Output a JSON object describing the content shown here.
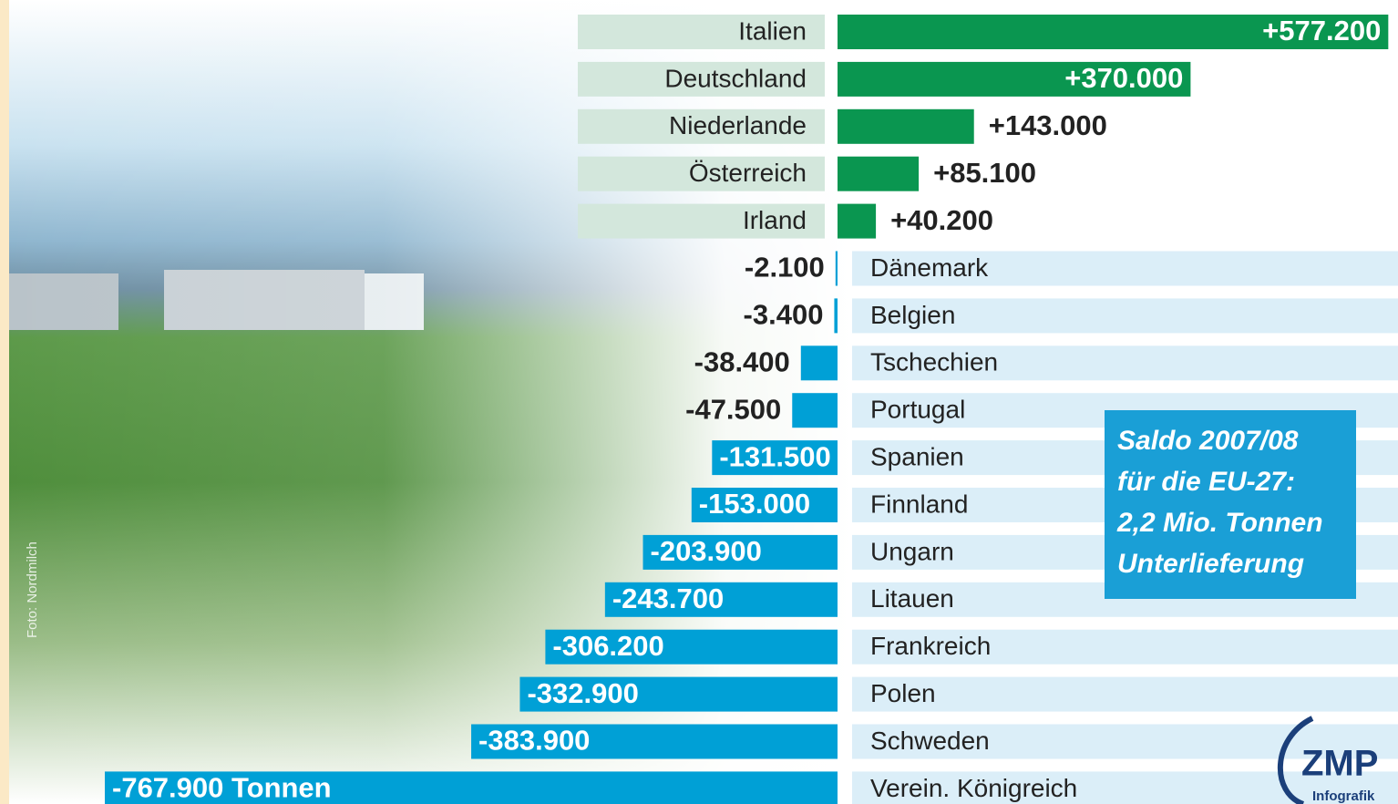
{
  "chart_data": {
    "type": "bar",
    "orientation": "horizontal",
    "categories": [
      "Italien",
      "Deutschland",
      "Niederlande",
      "Österreich",
      "Irland",
      "Dänemark",
      "Belgien",
      "Tschechien",
      "Portugal",
      "Spanien",
      "Finnland",
      "Ungarn",
      "Litauen",
      "Frankreich",
      "Polen",
      "Schweden",
      "Verein. Königreich"
    ],
    "values": [
      577200,
      370000,
      143000,
      85100,
      40200,
      -2100,
      -3400,
      -38400,
      -47500,
      -131500,
      -153000,
      -203900,
      -243700,
      -306200,
      -332900,
      -383900,
      -767900
    ],
    "value_labels": [
      "+577.200",
      "+370.000",
      "+143.000",
      "+85.100",
      "+40.200",
      "-2.100",
      "-3.400",
      "-38.400",
      "-47.500",
      "-131.500",
      "-153.000",
      "-203.900",
      "-243.700",
      "-306.200",
      "-332.900",
      "-383.900",
      "-767.900 Tonnen"
    ],
    "positive_color": "#0a9650",
    "negative_color": "#00a0d6",
    "annotations": [
      "Saldo 2007/08",
      "für die EU-27:",
      "2,2 Mio. Tonnen",
      "Unterlieferung"
    ],
    "photo_credit": "Foto: Nordmilch",
    "logo": [
      "ZMP",
      "Infografik"
    ]
  }
}
